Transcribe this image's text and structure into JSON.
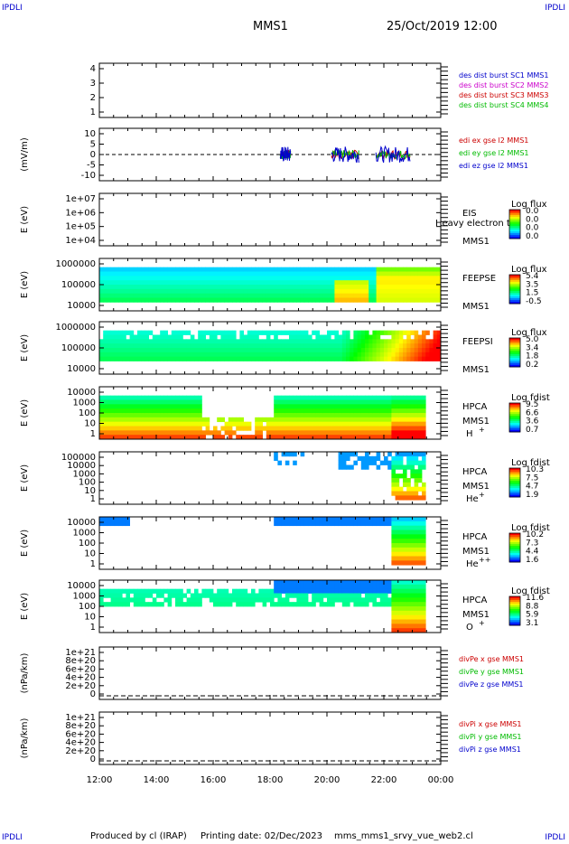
{
  "header": {
    "corner_tl": "IPDLI",
    "corner_tr": "IPDLI",
    "corner_bl": "IPDLI",
    "corner_br": "IPDLI",
    "spacecraft": "MMS1",
    "datetime": "25/Oct/2019 12:00"
  },
  "footer": {
    "produced": "Produced by cl (IRAP)",
    "printing": "Printing date: 02/Dec/2023",
    "file": "mms_mms1_srvy_vue_web2.cl"
  },
  "x_axis": {
    "ticks": [
      "12:00",
      "14:00",
      "16:00",
      "18:00",
      "20:00",
      "22:00",
      "00:00"
    ]
  },
  "colors": {
    "blue": "#0000cc",
    "magenta": "#cc00cc",
    "red": "#cc0000",
    "green": "#00bb00"
  },
  "chart_data": [
    {
      "type": "line",
      "name": "panel-des-dist",
      "yticks": [
        "4",
        "3",
        "2",
        "1"
      ],
      "legend": [
        {
          "text": "des dist burst SC1 MMS1",
          "color": "#0000cc"
        },
        {
          "text": "des dist burst SC2 MMS2",
          "color": "#cc00cc"
        },
        {
          "text": "des dist burst SC3 MMS3",
          "color": "#cc0000"
        },
        {
          "text": "des dist burst SC4 MMS4",
          "color": "#00bb00"
        }
      ]
    },
    {
      "type": "line",
      "name": "panel-edi-e",
      "ylabel": "(mV/m)",
      "yticks": [
        "10",
        "5",
        "0",
        "-5",
        "-10"
      ],
      "ylim": [
        -10,
        10
      ],
      "legend": [
        {
          "text": "edi ex gse l2 MMS1",
          "color": "#cc0000"
        },
        {
          "text": "edi ey gse l2 MMS1",
          "color": "#00bb00"
        },
        {
          "text": "edi ez gse l2 MMS1",
          "color": "#0000cc"
        }
      ]
    },
    {
      "type": "heatmap",
      "name": "panel-eis",
      "ylabel": "E (eV)",
      "yticks": [
        "1e+07",
        "1e+06",
        "1e+05",
        "1e+04"
      ],
      "instrument": "EIS",
      "species": "Heavy electron to",
      "sc": "MMS1",
      "colorbar": {
        "title": "Log flux",
        "ticks": [
          "0.0",
          "0.0",
          "0.0",
          "0.0"
        ]
      }
    },
    {
      "type": "heatmap",
      "name": "panel-feepse",
      "ylabel": "E (eV)",
      "yticks": [
        "1000000",
        "100000",
        "10000"
      ],
      "instrument": "FEEPSE",
      "sc": "MMS1",
      "colorbar": {
        "title": "Log flux",
        "ticks": [
          "5.4",
          "3.5",
          "1.5",
          "-0.5"
        ]
      }
    },
    {
      "type": "heatmap",
      "name": "panel-feepsi",
      "ylabel": "E (eV)",
      "yticks": [
        "1000000",
        "100000",
        "10000"
      ],
      "instrument": "FEEPSI",
      "sc": "MMS1",
      "colorbar": {
        "title": "Log flux",
        "ticks": [
          "5.0",
          "3.4",
          "1.8",
          "0.2"
        ]
      }
    },
    {
      "type": "heatmap",
      "name": "panel-hpca-h",
      "ylabel": "E (eV)",
      "yticks": [
        "10000",
        "1000",
        "100",
        "10",
        "1"
      ],
      "instrument": "HPCA",
      "sc": "MMS1",
      "species": "H",
      "charge": "+",
      "colorbar": {
        "title": "Log fdist",
        "ticks": [
          "9.5",
          "6.6",
          "3.6",
          "0.7"
        ]
      }
    },
    {
      "type": "heatmap",
      "name": "panel-hpca-he",
      "ylabel": "E (eV)",
      "yticks": [
        "100000",
        "10000",
        "1000",
        "100",
        "10",
        "1"
      ],
      "instrument": "HPCA",
      "sc": "MMS1",
      "species": "He",
      "charge": "+",
      "colorbar": {
        "title": "Log fdist",
        "ticks": [
          "10.3",
          "7.5",
          "4.7",
          "1.9"
        ]
      }
    },
    {
      "type": "heatmap",
      "name": "panel-hpca-he2",
      "ylabel": "E (eV)",
      "yticks": [
        "10000",
        "1000",
        "100",
        "10",
        "1"
      ],
      "instrument": "HPCA",
      "sc": "MMS1",
      "species": "He",
      "charge": "++",
      "colorbar": {
        "title": "Log fdist",
        "ticks": [
          "10.2",
          "7.3",
          "4.4",
          "1.6"
        ]
      }
    },
    {
      "type": "heatmap",
      "name": "panel-hpca-o",
      "ylabel": "E (eV)",
      "yticks": [
        "10000",
        "1000",
        "100",
        "10",
        "1"
      ],
      "instrument": "HPCA",
      "sc": "MMS1",
      "species": "O",
      "charge": "+",
      "colorbar": {
        "title": "Log fdist",
        "ticks": [
          "11.6",
          "8.8",
          "5.9",
          "3.1"
        ]
      }
    },
    {
      "type": "line",
      "name": "panel-divpe",
      "ylabel": "(nPa/km)",
      "yticks": [
        "1e+21",
        "8e+20",
        "6e+20",
        "4e+20",
        "2e+20",
        "0"
      ],
      "legend": [
        {
          "text": "divPe x gse MMS1",
          "color": "#cc0000"
        },
        {
          "text": "divPe y gse MMS1",
          "color": "#00bb00"
        },
        {
          "text": "divPe z gse MMS1",
          "color": "#0000cc"
        }
      ]
    },
    {
      "type": "line",
      "name": "panel-divpi",
      "ylabel": "(nPa/km)",
      "yticks": [
        "1e+21",
        "8e+20",
        "6e+20",
        "4e+20",
        "2e+20",
        "0"
      ],
      "legend": [
        {
          "text": "divPi x gse MMS1",
          "color": "#cc0000"
        },
        {
          "text": "divPi y gse MMS1",
          "color": "#00bb00"
        },
        {
          "text": "divPi z gse MMS1",
          "color": "#0000cc"
        }
      ]
    }
  ]
}
